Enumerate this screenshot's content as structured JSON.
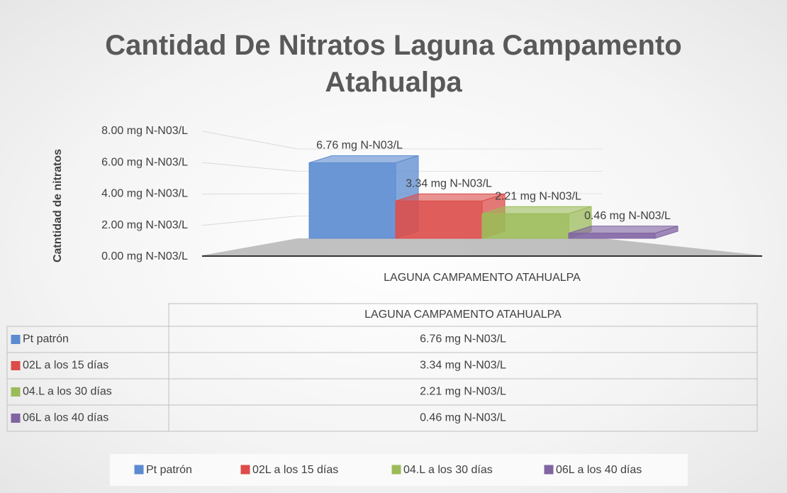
{
  "chart_data": {
    "type": "bar",
    "title": "Cantidad De Nitratos Laguna Campamento Atahualpa",
    "y_axis_label": "Catntidad de nitratos",
    "categories": [
      "LAGUNA CAMPAMENTO ATAHUALPA"
    ],
    "series": [
      {
        "name": "Pt patrón",
        "color": "#5b8bd0",
        "values": [
          6.76
        ],
        "value_labels": [
          "6.76 mg N-N03/L"
        ]
      },
      {
        "name": "02L a los 15 días",
        "color": "#dc4c4a",
        "values": [
          3.34
        ],
        "value_labels": [
          "3.34 mg N-N03/L"
        ]
      },
      {
        "name": "04.L a los 30 días",
        "color": "#9bbb59",
        "values": [
          2.21
        ],
        "value_labels": [
          "2.21 mg N-N03/L"
        ]
      },
      {
        "name": "06L a los 40 días",
        "color": "#8064a2",
        "values": [
          0.46
        ],
        "value_labels": [
          "0.46 mg N-N03/L"
        ]
      }
    ],
    "ylim": [
      0,
      8
    ],
    "yticks": [
      {
        "value": 0,
        "label": "0.00 mg N-N03/L"
      },
      {
        "value": 2,
        "label": "2.00 mg N-N03/L"
      },
      {
        "value": 4,
        "label": "4.00 mg N-N03/L"
      },
      {
        "value": 6,
        "label": "6.00 mg N-N03/L"
      },
      {
        "value": 8,
        "label": "8.00 mg N-N03/L"
      }
    ],
    "grid": true
  }
}
